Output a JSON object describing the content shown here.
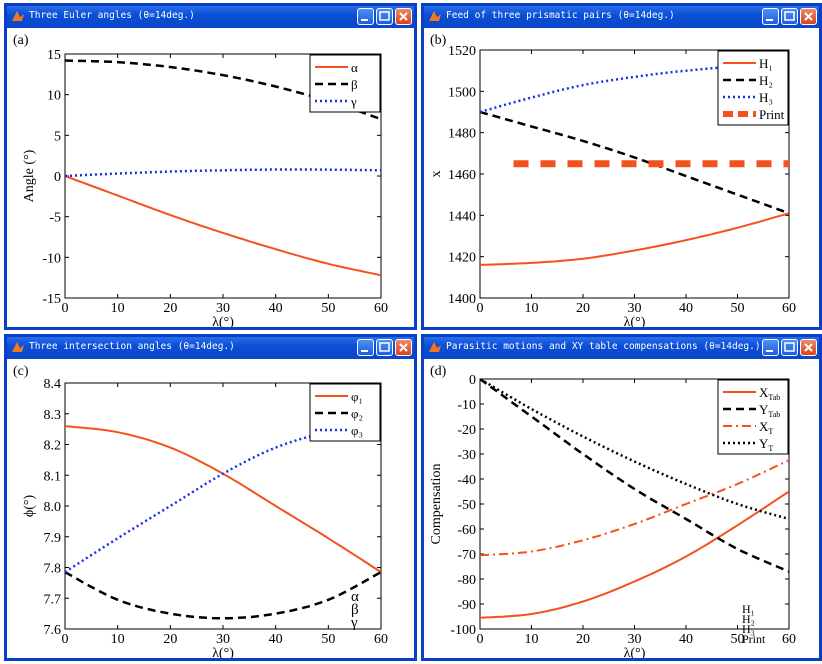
{
  "windows": [
    {
      "title": "Three Euler angles (θ=14deg.)",
      "panel_label": "(a)"
    },
    {
      "title": "Feed of three prismatic pairs (θ=14deg.)",
      "panel_label": "(b)"
    },
    {
      "title": "Three intersection angles (θ=14deg.)",
      "panel_label": "(c)"
    },
    {
      "title": "Parasitic motions and XY table compensations (θ=14deg.)",
      "panel_label": "(d)"
    }
  ],
  "chart_data": [
    {
      "type": "line",
      "xlabel": "λ(°)",
      "ylabel": "Angle (°)",
      "xlim": [
        0,
        60
      ],
      "ylim": [
        -15,
        15
      ],
      "xticks": [
        "0",
        "10",
        "20",
        "30",
        "40",
        "50",
        "60"
      ],
      "yticks": [
        "-15",
        "-10",
        "-5",
        "0",
        "5",
        "10",
        "15"
      ],
      "legend_position": "top-right",
      "x": [
        0,
        10,
        20,
        30,
        40,
        50,
        60
      ],
      "series": [
        {
          "name": "α",
          "color": "#f4511e",
          "dash": "solid",
          "values": [
            0,
            -2.4,
            -4.8,
            -7.0,
            -9.0,
            -10.8,
            -12.2
          ]
        },
        {
          "name": "β",
          "color": "#000000",
          "dash": "dash",
          "values": [
            14.2,
            14.0,
            13.4,
            12.4,
            11.0,
            9.2,
            7.0
          ]
        },
        {
          "name": "γ",
          "color": "#1a2ee8",
          "dash": "dot",
          "values": [
            0,
            0.3,
            0.55,
            0.7,
            0.8,
            0.78,
            0.7
          ]
        }
      ]
    },
    {
      "type": "line",
      "xlabel": "λ(°)",
      "ylabel": "x",
      "xlim": [
        0,
        60
      ],
      "ylim": [
        1400,
        1520
      ],
      "xticks": [
        "0",
        "10",
        "20",
        "30",
        "40",
        "50",
        "60"
      ],
      "yticks": [
        "1400",
        "1420",
        "1440",
        "1460",
        "1480",
        "1500",
        "1520"
      ],
      "legend_position": "top-right",
      "x": [
        0,
        10,
        20,
        30,
        40,
        50,
        60
      ],
      "series": [
        {
          "name": "H₁",
          "color": "#f4511e",
          "dash": "solid",
          "values": [
            1416,
            1417,
            1419,
            1423,
            1428,
            1434,
            1441
          ]
        },
        {
          "name": "H₂",
          "color": "#000000",
          "dash": "dash",
          "values": [
            1490,
            1483,
            1476,
            1468,
            1459,
            1450,
            1441
          ]
        },
        {
          "name": "H₃",
          "color": "#1a2ee8",
          "dash": "dot",
          "values": [
            1490,
            1497,
            1503,
            1507,
            1510,
            1512,
            1513
          ]
        },
        {
          "name": "Print",
          "color": "#f4511e",
          "dash": "thick-dash",
          "x": [
            6.5,
            60
          ],
          "values": [
            1465,
            1465
          ]
        }
      ]
    },
    {
      "type": "line",
      "xlabel": "λ(°)",
      "ylabel": "ϕ(°)",
      "xlim": [
        0,
        60
      ],
      "ylim": [
        7.6,
        8.4
      ],
      "xticks": [
        "0",
        "10",
        "20",
        "30",
        "40",
        "50",
        "60"
      ],
      "yticks": [
        "7.6",
        "7.7",
        "7.8",
        "7.9",
        "8.0",
        "8.1",
        "8.2",
        "8.3",
        "8.4"
      ],
      "legend_position": "top-right",
      "overlay_text": [
        "α",
        "β",
        "γ"
      ],
      "x": [
        0,
        10,
        20,
        30,
        40,
        50,
        60
      ],
      "series": [
        {
          "name": "φ₁",
          "color": "#f4511e",
          "dash": "solid",
          "values": [
            8.26,
            8.24,
            8.19,
            8.105,
            8.0,
            7.895,
            7.785
          ]
        },
        {
          "name": "φ₂",
          "color": "#000000",
          "dash": "dash",
          "values": [
            7.785,
            7.695,
            7.65,
            7.635,
            7.65,
            7.695,
            7.785
          ]
        },
        {
          "name": "φ₃",
          "color": "#1a2ee8",
          "dash": "dot",
          "values": [
            7.785,
            7.895,
            8.0,
            8.105,
            8.19,
            8.24,
            8.26
          ]
        }
      ]
    },
    {
      "type": "line",
      "xlabel": "λ(°)",
      "ylabel": "Compensation",
      "xlim": [
        0,
        60
      ],
      "ylim": [
        -100,
        0
      ],
      "xticks": [
        "0",
        "10",
        "20",
        "30",
        "40",
        "50",
        "60"
      ],
      "yticks": [
        "-100",
        "-90",
        "-80",
        "-70",
        "-60",
        "-50",
        "-40",
        "-30",
        "-20",
        "-10",
        "0"
      ],
      "legend_position": "top-right",
      "overlay_text": [
        "H₁",
        "H₂",
        "H₃",
        "Print"
      ],
      "x": [
        0,
        10,
        20,
        30,
        40,
        50,
        60
      ],
      "series": [
        {
          "name": "X_Tab",
          "color": "#f4511e",
          "dash": "solid",
          "values": [
            -95.5,
            -94,
            -89,
            -81,
            -71,
            -58.5,
            -45
          ]
        },
        {
          "name": "Y_Tab",
          "color": "#000000",
          "dash": "dash",
          "values": [
            0,
            -15,
            -30,
            -44,
            -56,
            -68,
            -77
          ]
        },
        {
          "name": "X_T",
          "color": "#f4511e",
          "dash": "dashdot",
          "values": [
            -70.5,
            -69,
            -64.5,
            -58,
            -50,
            -42,
            -32.5
          ]
        },
        {
          "name": "Y_T",
          "color": "#000000",
          "dash": "dot",
          "values": [
            0,
            -12,
            -23,
            -33,
            -42,
            -50,
            -56
          ]
        }
      ]
    }
  ]
}
